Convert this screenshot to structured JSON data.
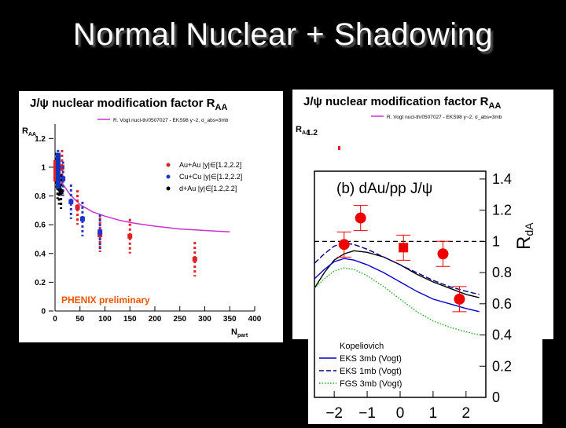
{
  "slide": {
    "title": "Normal Nuclear + Shadowing"
  },
  "colors": {
    "background": "#000000",
    "au_au": "#dd2222",
    "cu_cu": "#2233cc",
    "d_au": "#000000",
    "model": "#cc33cc",
    "dAu_points": "#ee0000",
    "eks3": "#0000cc",
    "eks1": "#000088",
    "fgs": "#22aa22"
  },
  "chart_data": [
    {
      "type": "scatter",
      "title": "J/ψ nuclear modification factor R",
      "title_sub": "AA",
      "ylabel": "R",
      "ylabel_sub": "AA",
      "xlabel": "N",
      "xlabel_sub": "part",
      "xlim": [
        0,
        400
      ],
      "ylim": [
        0,
        1.3
      ],
      "xticks": [
        "0",
        "50",
        "100",
        "150",
        "200",
        "250",
        "300",
        "350",
        "400"
      ],
      "yticks": [
        "0",
        "0.2",
        "0.4",
        "0.6",
        "0.8",
        "1",
        "1.2"
      ],
      "model_legend": "R. Vogt nucl-th/0507027 - EKS98 y~2, σ_abs=3mb",
      "legend": [
        "Au+Au |y|∈[1.2,2.2]",
        "Cu+Cu |y|∈[1.2,2.2]",
        "d+Au |y|∈[1.2,2.2]"
      ],
      "annotation": "PHENIX preliminary",
      "model_curve": {
        "x": [
          12,
          30,
          50,
          75,
          100,
          130,
          160,
          200,
          250,
          300,
          350
        ],
        "y": [
          0.9,
          0.81,
          0.74,
          0.69,
          0.66,
          0.63,
          0.61,
          0.59,
          0.57,
          0.56,
          0.55
        ]
      },
      "series": [
        {
          "name": "Au+Au",
          "x": [
            14,
            45,
            90,
            150,
            280
          ],
          "y": [
            1.0,
            0.72,
            0.53,
            0.52,
            0.36
          ]
        },
        {
          "name": "Cu+Cu",
          "x": [
            6,
            16,
            32,
            55,
            90
          ],
          "y": [
            1.0,
            0.92,
            0.76,
            0.64,
            0.55
          ]
        },
        {
          "name": "d+Au",
          "x": [
            3,
            5,
            8,
            12
          ],
          "y": [
            0.98,
            0.9,
            0.86,
            0.83
          ]
        }
      ]
    },
    {
      "type": "scatter",
      "title": "(b) dAu/pp  J/ψ",
      "ylabel": "R",
      "ylabel_sub": "dA",
      "xlim": [
        -2.6,
        2.6
      ],
      "ylim": [
        0,
        1.45
      ],
      "xticks": [
        "−2",
        "−1",
        "0",
        "1",
        "2"
      ],
      "yticks": [
        "0",
        "0.2",
        "0.4",
        "0.6",
        "0.8",
        "1",
        "1.2",
        "1.4"
      ],
      "series": [
        {
          "name": "PHENIX dAu",
          "x": [
            -1.7,
            -1.2,
            0.1,
            1.3,
            1.8
          ],
          "y": [
            0.98,
            1.15,
            0.96,
            0.92,
            0.63
          ]
        }
      ],
      "legend": [
        "Kopeliovich",
        "EKS 3mb (Vogt)",
        "EKS 1mb (Vogt)",
        "FGS 3mb (Vogt)"
      ],
      "curves": [
        {
          "name": "Kopeliovich",
          "x": [
            -2.6,
            -2.3,
            -2.0,
            -1.7,
            -1.4,
            -1.0,
            -0.5,
            0,
            0.5,
            1.0,
            1.5,
            2.0,
            2.4
          ],
          "y": [
            0.7,
            0.8,
            0.88,
            0.92,
            0.94,
            0.93,
            0.9,
            0.85,
            0.79,
            0.74,
            0.7,
            0.66,
            0.64
          ]
        },
        {
          "name": "EKS 3mb (Vogt)",
          "x": [
            -2.6,
            -2.3,
            -2.0,
            -1.7,
            -1.4,
            -1.0,
            -0.5,
            0,
            0.5,
            1.0,
            1.5,
            2.0,
            2.4
          ],
          "y": [
            0.76,
            0.82,
            0.87,
            0.89,
            0.88,
            0.85,
            0.8,
            0.74,
            0.68,
            0.63,
            0.6,
            0.57,
            0.55
          ]
        },
        {
          "name": "EKS 1mb (Vogt)",
          "x": [
            -2.6,
            -2.3,
            -2.0,
            -1.7,
            -1.4,
            -1.0,
            -0.5,
            0,
            0.5,
            1.0,
            1.5,
            2.0,
            2.4
          ],
          "y": [
            0.86,
            0.92,
            0.97,
            0.99,
            0.98,
            0.95,
            0.9,
            0.85,
            0.8,
            0.75,
            0.71,
            0.68,
            0.66
          ]
        },
        {
          "name": "FGS 3mb (Vogt)",
          "x": [
            -2.6,
            -2.3,
            -2.0,
            -1.7,
            -1.4,
            -1.0,
            -0.5,
            0,
            0.5,
            1.0,
            1.5,
            2.0,
            2.4
          ],
          "y": [
            0.7,
            0.76,
            0.81,
            0.83,
            0.82,
            0.78,
            0.71,
            0.63,
            0.55,
            0.49,
            0.45,
            0.42,
            0.4
          ]
        }
      ]
    }
  ]
}
